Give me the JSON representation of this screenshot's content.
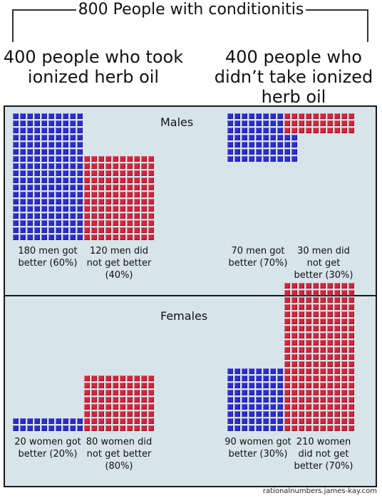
{
  "title": "800 People with conditionitis",
  "groups": {
    "treated": "400 people who took ionized herb oil",
    "untreated": "400 people who didn’t take ionized herb oil"
  },
  "panels": {
    "males": {
      "title": "Males",
      "treated_better": {
        "caption": "180 men got better (60%)",
        "count": 180,
        "color": "blue"
      },
      "treated_not": {
        "caption": "120 men did not get better (40%)",
        "count": 120,
        "color": "red"
      },
      "untreated_better": {
        "caption": "70 men got better (70%)",
        "count": 70,
        "color": "blue"
      },
      "untreated_not": {
        "caption": "30 men did not get better (30%)",
        "count": 30,
        "color": "red"
      }
    },
    "females": {
      "title": "Females",
      "treated_better": {
        "caption": "20 women got better (20%)",
        "count": 20,
        "color": "blue"
      },
      "treated_not": {
        "caption": "80 women did not get better (80%)",
        "count": 80,
        "color": "red"
      },
      "untreated_better": {
        "caption": "90 women got better (30%)",
        "count": 90,
        "color": "blue"
      },
      "untreated_not": {
        "caption": "210 women did not get better (70%)",
        "count": 210,
        "color": "red"
      }
    }
  },
  "colors": {
    "better": "#2b2bd6",
    "not_better": "#d8233a",
    "panel_bg": "#d7e4ea"
  },
  "credit": "rationalnumbers.james-kay.com"
}
